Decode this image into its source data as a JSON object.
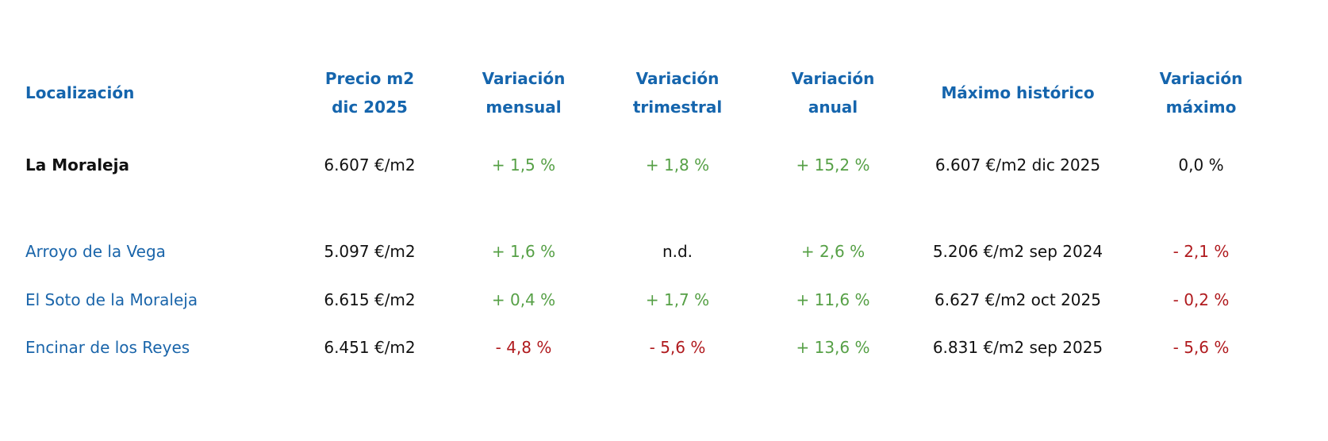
{
  "table": {
    "header": [
      [
        "Localización"
      ],
      [
        "Precio m2",
        "dic 2025"
      ],
      [
        "Variación",
        "mensual"
      ],
      [
        "Variación",
        "trimestral"
      ],
      [
        "Variación",
        "anual"
      ],
      [
        "Máximo histórico"
      ],
      [
        "Variación",
        "máximo"
      ]
    ],
    "rows": [
      [
        "La Moraleja",
        "6.607 €/m2",
        "+ 1,5 %",
        "+ 1,8 %",
        "+ 15,2 %",
        "6.607 €/m2 dic 2025",
        "0,0 %"
      ],
      [
        "Arroyo de la Vega",
        "5.097 €/m2",
        "+ 1,6 %",
        "n.d.",
        "+ 2,6 %",
        "5.206 €/m2 sep 2024",
        "- 2,1 %"
      ],
      [
        "El Soto de la Moraleja",
        "6.615 €/m2",
        "+ 0,4 %",
        "+ 1,7 %",
        "+ 11,6 %",
        "6.627 €/m2 oct 2025",
        "- 0,2 %"
      ],
      [
        "Encinar de los Reyes",
        "6.451 €/m2",
        "- 4,8 %",
        "- 5,6 %",
        "+ 13,6 %",
        "6.831 €/m2 sep 2025",
        "- 5,6 %"
      ]
    ]
  }
}
